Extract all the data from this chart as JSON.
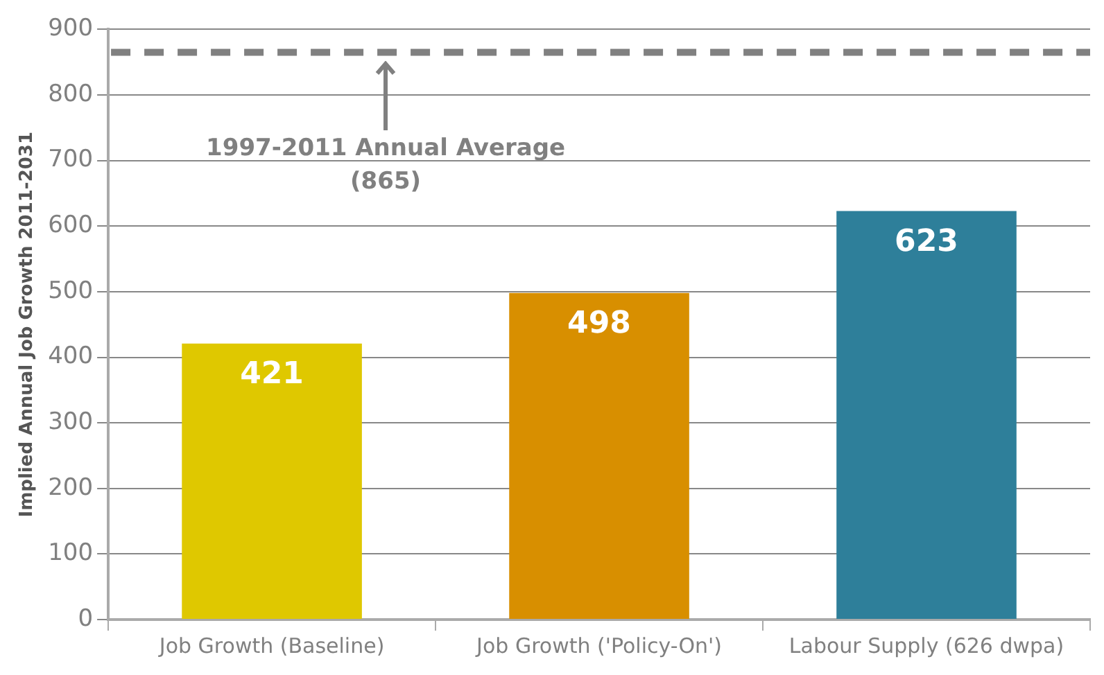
{
  "chart_data": {
    "type": "bar",
    "ylabel": "Implied Annual Job Growth 2011-2031",
    "categories": [
      "Job Growth (Baseline)",
      "Job Growth ('Policy-On')",
      "Labour Supply (626 dwpa)"
    ],
    "values": [
      421,
      498,
      623
    ],
    "colors": [
      "#dfc800",
      "#d88f00",
      "#2e7f9a"
    ],
    "ylim": [
      0,
      900
    ],
    "yticks": [
      0,
      100,
      200,
      300,
      400,
      500,
      600,
      700,
      800,
      900
    ],
    "grid": "y",
    "data_labels": true,
    "ref_lines": [
      {
        "axis": "y",
        "value": 865,
        "label": "1997-2011 Annual Average (865)",
        "color": "#808080",
        "line_style": "dashed"
      }
    ]
  }
}
